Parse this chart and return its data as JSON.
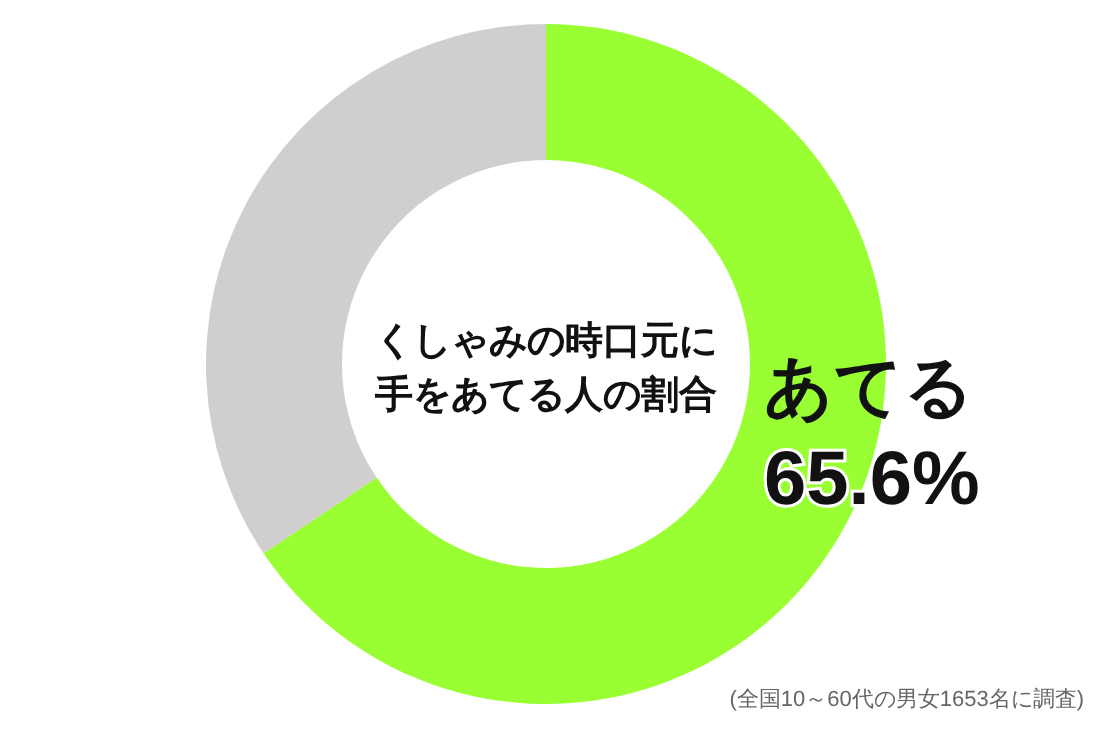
{
  "chart_data": {
    "type": "donut",
    "title": "くしゃみの時口元に手をあてる人の割合",
    "categories": [
      "あてる",
      null
    ],
    "values": [
      65.6,
      34.4
    ],
    "colors": [
      "#99ff33",
      "#d0cecf"
    ],
    "value_labels": [
      "65.6%",
      null
    ],
    "annotations": [
      "(全国10～60代の男女1653名に調査)"
    ]
  }
}
